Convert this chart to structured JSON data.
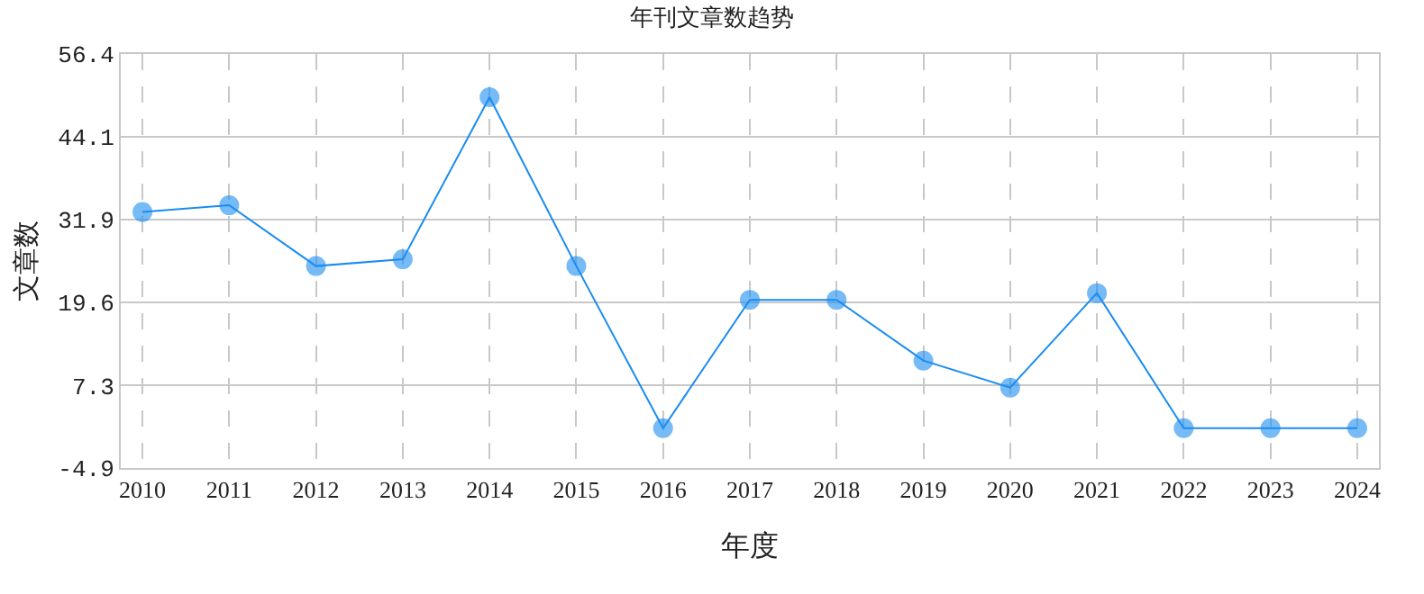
{
  "chart_data": {
    "type": "line",
    "title": "年刊文章数趋势",
    "xlabel": "年度",
    "ylabel": "文章数",
    "categories": [
      "2010",
      "2011",
      "2012",
      "2013",
      "2014",
      "2015",
      "2016",
      "2017",
      "2018",
      "2019",
      "2020",
      "2021",
      "2022",
      "2023",
      "2024"
    ],
    "series": [
      {
        "color": "#1a8cf0",
        "values": [
          33,
          34,
          25,
          26,
          50,
          25,
          1,
          20,
          20,
          11,
          7,
          21,
          1,
          1,
          1
        ]
      }
    ],
    "ylim": [
      -4.9,
      56.4
    ],
    "yticks": [
      -4.9,
      7.3,
      19.6,
      31.9,
      44.1,
      56.4
    ],
    "grid": true,
    "marker": "circle",
    "line_style": "solid",
    "legend": false
  }
}
